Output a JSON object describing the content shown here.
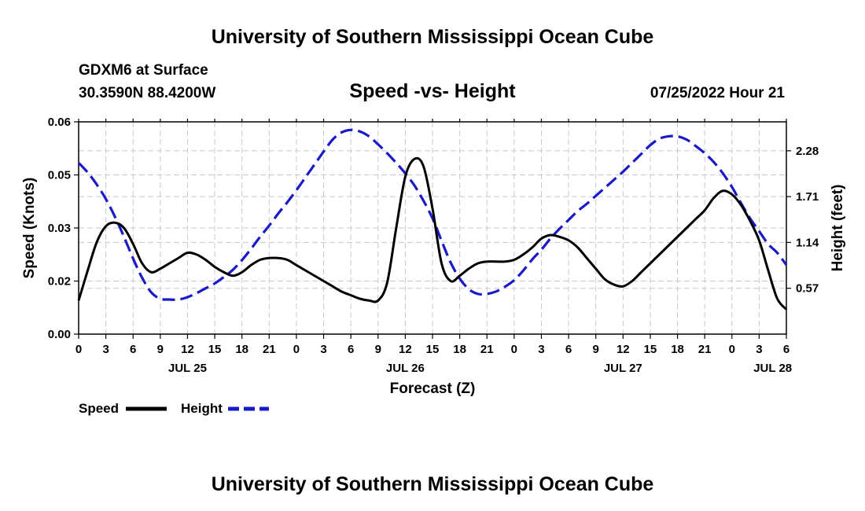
{
  "header": {
    "title": "University of Southern Mississippi Ocean Cube",
    "station": "GDXM6 at Surface",
    "location": "30.3590N  88.4200W",
    "datetime": "07/25/2022 Hour 21"
  },
  "footer": {
    "title": "University of Southern Mississippi Ocean Cube"
  },
  "chart_data": {
    "type": "line",
    "title": "Speed -vs- Height",
    "xlabel": "Forecast (Z)",
    "ylabel": "Speed (Knots)",
    "y2label": "Height (feet)",
    "x_unit": "hours since 00Z Jul 25",
    "xlim": [
      0,
      78
    ],
    "x_ticks": [
      0,
      3,
      6,
      9,
      12,
      15,
      18,
      21,
      24,
      27,
      30,
      33,
      36,
      39,
      42,
      45,
      48,
      51,
      54,
      57,
      60,
      63,
      66,
      69,
      72,
      75,
      78
    ],
    "x_tick_labels": [
      "0",
      "3",
      "6",
      "9",
      "12",
      "15",
      "18",
      "21",
      "0",
      "3",
      "6",
      "9",
      "12",
      "15",
      "18",
      "21",
      "0",
      "3",
      "6",
      "9",
      "12",
      "15",
      "18",
      "21",
      "0",
      "3",
      "6"
    ],
    "date_labels": [
      {
        "x": 12,
        "label": "JUL 25"
      },
      {
        "x": 36,
        "label": "JUL 26"
      },
      {
        "x": 60,
        "label": "JUL 27"
      },
      {
        "x": 76.5,
        "label": "JUL 28"
      }
    ],
    "ylim": [
      0,
      0.06
    ],
    "y_ticks": [
      0,
      0.015,
      0.03,
      0.045,
      0.06
    ],
    "y_tick_labels": [
      "0.00",
      "0.02",
      "0.03",
      "0.05",
      "0.06"
    ],
    "y2lim": [
      0,
      2.64
    ],
    "y2_ticks": [
      0.57,
      1.14,
      1.71,
      2.28
    ],
    "y2_tick_labels": [
      "0.57",
      "1.14",
      "1.71",
      "2.28"
    ],
    "series": [
      {
        "name": "Speed",
        "axis": "left",
        "color": "#000000",
        "dash": "solid",
        "x": [
          0,
          1,
          2,
          3,
          4,
          5,
          6,
          7,
          8,
          9,
          10,
          11,
          12,
          13,
          14,
          15,
          16,
          17,
          18,
          19,
          20,
          21,
          22,
          23,
          24,
          25,
          26,
          27,
          28,
          29,
          30,
          31,
          32,
          33,
          34,
          35,
          36,
          37,
          38,
          39,
          40,
          41,
          42,
          43,
          44,
          45,
          46,
          47,
          48,
          49,
          50,
          51,
          52,
          53,
          54,
          55,
          56,
          57,
          58,
          59,
          60,
          61,
          62,
          63,
          64,
          65,
          66,
          67,
          68,
          69,
          70,
          71,
          72,
          73,
          74,
          75,
          76,
          77,
          78
        ],
        "values": [
          0.0095,
          0.018,
          0.026,
          0.0305,
          0.0315,
          0.03,
          0.0255,
          0.02,
          0.0175,
          0.0185,
          0.02,
          0.0215,
          0.023,
          0.0225,
          0.021,
          0.019,
          0.0175,
          0.0165,
          0.0175,
          0.0195,
          0.021,
          0.0215,
          0.0215,
          0.021,
          0.0195,
          0.018,
          0.0165,
          0.015,
          0.0135,
          0.012,
          0.011,
          0.01,
          0.0095,
          0.0095,
          0.0145,
          0.03,
          0.0445,
          0.0495,
          0.0475,
          0.0355,
          0.02,
          0.015,
          0.0165,
          0.0185,
          0.02,
          0.0205,
          0.0205,
          0.0205,
          0.021,
          0.0225,
          0.0245,
          0.027,
          0.028,
          0.0275,
          0.0265,
          0.0245,
          0.0215,
          0.0185,
          0.0155,
          0.014,
          0.0135,
          0.015,
          0.0175,
          0.02,
          0.0225,
          0.025,
          0.0275,
          0.03,
          0.0325,
          0.035,
          0.0385,
          0.0405,
          0.0395,
          0.0365,
          0.032,
          0.0265,
          0.018,
          0.01,
          0.007
        ]
      },
      {
        "name": "Height",
        "axis": "right",
        "color": "#1a1ac8",
        "dash": "dashed",
        "x": [
          0,
          1,
          2,
          3,
          4,
          5,
          6,
          7,
          8,
          9,
          10,
          11,
          12,
          13,
          14,
          15,
          16,
          17,
          18,
          19,
          20,
          21,
          22,
          23,
          24,
          25,
          26,
          27,
          28,
          29,
          30,
          31,
          32,
          33,
          34,
          35,
          36,
          37,
          38,
          39,
          40,
          41,
          42,
          43,
          44,
          45,
          46,
          47,
          48,
          49,
          50,
          51,
          52,
          53,
          54,
          55,
          56,
          57,
          58,
          59,
          60,
          61,
          62,
          63,
          64,
          65,
          66,
          67,
          68,
          69,
          70,
          71,
          72,
          73,
          74,
          75,
          76,
          77,
          78
        ],
        "values": [
          2.13,
          2.01,
          1.86,
          1.68,
          1.46,
          1.21,
          0.94,
          0.7,
          0.52,
          0.44,
          0.43,
          0.43,
          0.46,
          0.51,
          0.57,
          0.63,
          0.71,
          0.8,
          0.92,
          1.06,
          1.21,
          1.35,
          1.5,
          1.64,
          1.79,
          1.95,
          2.11,
          2.27,
          2.42,
          2.51,
          2.54,
          2.52,
          2.46,
          2.36,
          2.25,
          2.13,
          2.0,
          1.85,
          1.66,
          1.44,
          1.16,
          0.89,
          0.69,
          0.56,
          0.5,
          0.5,
          0.53,
          0.59,
          0.67,
          0.79,
          0.93,
          1.05,
          1.19,
          1.31,
          1.42,
          1.53,
          1.62,
          1.72,
          1.82,
          1.92,
          2.02,
          2.13,
          2.24,
          2.35,
          2.43,
          2.46,
          2.46,
          2.42,
          2.34,
          2.25,
          2.14,
          2.0,
          1.83,
          1.63,
          1.44,
          1.28,
          1.12,
          1.01,
          0.86
        ]
      }
    ],
    "legend": {
      "placement": "bottom-left",
      "entries": [
        {
          "label": "Speed",
          "color": "#000000",
          "dash": "solid"
        },
        {
          "label": "Height",
          "color": "#1a1ac8",
          "dash": "dashed"
        }
      ]
    },
    "grid": true
  }
}
